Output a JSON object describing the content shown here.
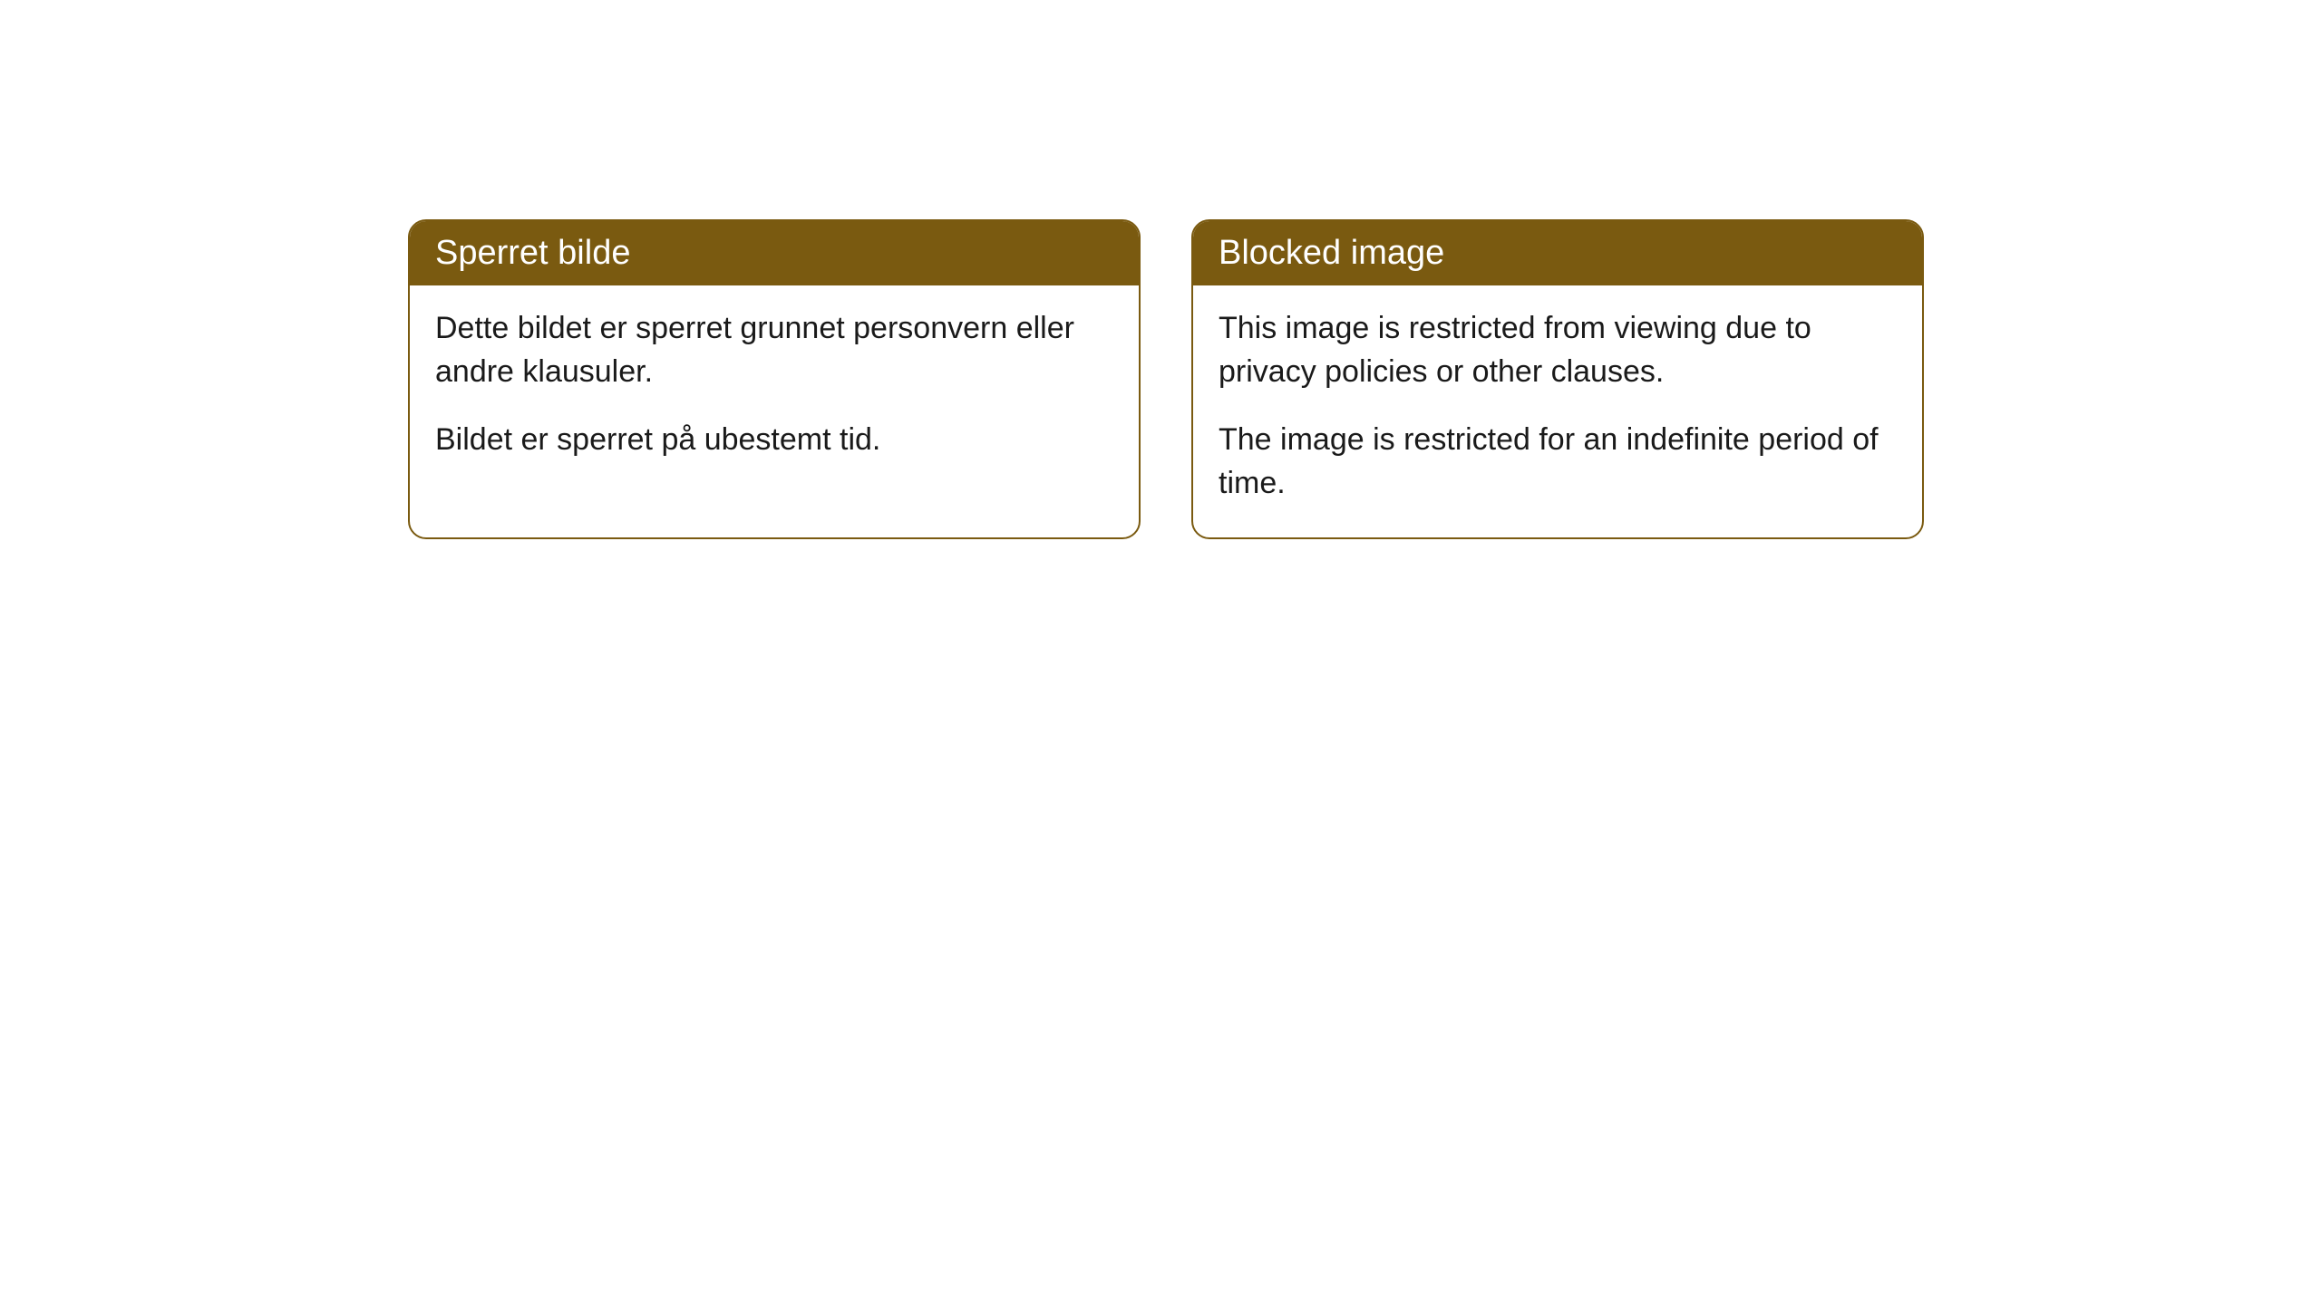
{
  "cards": [
    {
      "title": "Sperret bilde",
      "paragraph1": "Dette bildet er sperret grunnet personvern eller andre klausuler.",
      "paragraph2": "Bildet er sperret på ubestemt tid."
    },
    {
      "title": "Blocked image",
      "paragraph1": "This image is restricted from viewing due to privacy policies or other clauses.",
      "paragraph2": "The image is restricted for an indefinite period of time."
    }
  ],
  "styling": {
    "header_bg_color": "#7a5a10",
    "header_text_color": "#ffffff",
    "border_color": "#7a5a10",
    "body_bg_color": "#ffffff",
    "body_text_color": "#1a1a1a",
    "border_radius": "20px",
    "title_fontsize": 38,
    "body_fontsize": 34
  }
}
